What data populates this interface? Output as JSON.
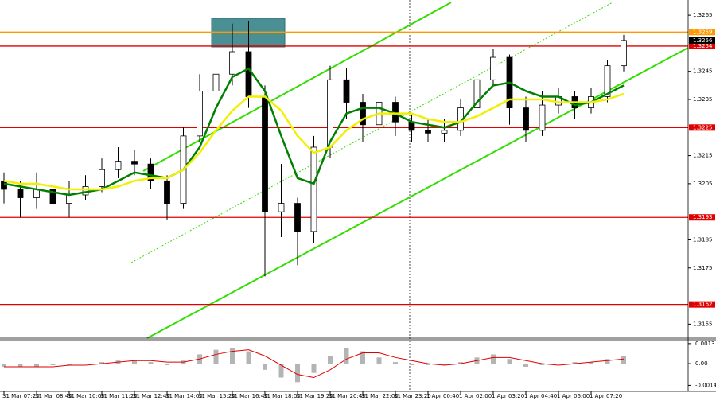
{
  "chart_data": [
    {
      "type": "candlestick",
      "categories": [
        "31 Mar 07:20",
        null,
        "31 Mar 08:40",
        null,
        "31 Mar 10:00",
        null,
        "31 Mar 11:20",
        null,
        "31 Mar 12:40",
        null,
        "31 Mar 14:00",
        null,
        "31 Mar 15:20",
        null,
        "31 Mar 16:40",
        null,
        "31 Mar 18:00",
        null,
        "31 Mar 19:20",
        null,
        "31 Mar 20:40",
        null,
        "31 Mar 22:00",
        null,
        "31 Mar 23:20",
        null,
        "1 Apr 00:40",
        null,
        "1 Apr 02:00",
        null,
        "1 Apr 03:20",
        null,
        "1 Apr 04:40",
        null,
        "1 Apr 06:00",
        null,
        "1 Apr 07:20",
        null,
        null
      ],
      "open": [
        1.3206,
        1.3203,
        1.32,
        1.3203,
        1.3198,
        1.3201,
        1.3204,
        1.321,
        1.3213,
        1.3212,
        1.3206,
        1.3198,
        1.3222,
        1.3238,
        1.3244,
        1.3252,
        1.3236,
        1.3195,
        1.3198,
        1.3188,
        1.3218,
        1.3242,
        1.3234,
        1.3226,
        1.3234,
        1.3227,
        1.3224,
        1.3223,
        1.3224,
        1.3232,
        1.3242,
        1.325,
        1.3232,
        1.3224,
        1.3233,
        1.3236,
        1.3232,
        1.3236,
        1.3247
      ],
      "high": [
        1.3209,
        1.3206,
        1.3209,
        1.3207,
        1.3206,
        1.3208,
        1.3214,
        1.3218,
        1.3217,
        1.3214,
        1.3208,
        1.3225,
        1.3244,
        1.325,
        1.3262,
        1.3263,
        1.324,
        1.3212,
        1.32,
        1.3222,
        1.3247,
        1.3246,
        1.3237,
        1.3239,
        1.3236,
        1.323,
        1.3228,
        1.3228,
        1.3235,
        1.3245,
        1.3253,
        1.3251,
        1.3236,
        1.3238,
        1.3239,
        1.3238,
        1.3239,
        1.3249,
        1.3258
      ],
      "low": [
        1.3198,
        1.3193,
        1.3196,
        1.3192,
        1.3193,
        1.3199,
        1.3202,
        1.3207,
        1.3208,
        1.3203,
        1.3192,
        1.3196,
        1.322,
        1.3234,
        1.324,
        1.3232,
        1.3172,
        1.3186,
        1.3176,
        1.3184,
        1.3214,
        1.3228,
        1.322,
        1.3224,
        1.3222,
        1.322,
        1.322,
        1.322,
        1.3222,
        1.323,
        1.324,
        1.3226,
        1.322,
        1.3222,
        1.323,
        1.3228,
        1.323,
        1.3234,
        1.3245
      ],
      "close": [
        1.3203,
        1.32,
        1.3203,
        1.3198,
        1.3201,
        1.3204,
        1.321,
        1.3213,
        1.3212,
        1.3206,
        1.3198,
        1.3222,
        1.3238,
        1.3244,
        1.3252,
        1.3236,
        1.3195,
        1.3198,
        1.3188,
        1.3218,
        1.3242,
        1.3234,
        1.3226,
        1.3234,
        1.3227,
        1.3224,
        1.3223,
        1.3224,
        1.3232,
        1.3242,
        1.325,
        1.3232,
        1.3224,
        1.3233,
        1.3236,
        1.3232,
        1.3236,
        1.3247,
        1.3256
      ],
      "series": [
        {
          "color": "#008000",
          "values": [
            1.3205,
            1.3204,
            1.3203,
            1.3202,
            1.3201,
            1.3202,
            1.3203,
            1.3206,
            1.3209,
            1.3208,
            1.3207,
            1.321,
            1.3218,
            1.3232,
            1.3243,
            1.3246,
            1.3238,
            1.3222,
            1.3207,
            1.3205,
            1.322,
            1.323,
            1.3232,
            1.3232,
            1.323,
            1.3227,
            1.3226,
            1.3225,
            1.3227,
            1.3234,
            1.324,
            1.3241,
            1.3238,
            1.3236,
            1.3236,
            1.3233,
            1.3234,
            1.3237,
            1.324
          ]
        },
        {
          "color": "#f0f000",
          "values": [
            1.3206,
            1.3205,
            1.3205,
            1.3204,
            1.3203,
            1.3203,
            1.3203,
            1.3204,
            1.3206,
            1.3207,
            1.3207,
            1.321,
            1.3216,
            1.3224,
            1.3231,
            1.3236,
            1.3236,
            1.3231,
            1.3222,
            1.3216,
            1.3218,
            1.3224,
            1.3228,
            1.323,
            1.323,
            1.323,
            1.3228,
            1.3227,
            1.3227,
            1.3229,
            1.3232,
            1.3235,
            1.3235,
            1.3235,
            1.3234,
            1.3234,
            1.3234,
            1.3235,
            1.3237
          ]
        }
      ],
      "levels": [
        {
          "value": 1.3259,
          "color": "#ff9900"
        },
        {
          "value": 1.3254,
          "color": "#e00000"
        },
        {
          "value": 1.3225,
          "color": "#e00000"
        },
        {
          "value": 1.3193,
          "color": "#e00000"
        },
        {
          "value": 1.3162,
          "color": "#e00000"
        }
      ],
      "last_price": 1.3256,
      "ylim": [
        1.315,
        1.3269
      ],
      "yticks": [
        1.3155,
        1.3175,
        1.3185,
        1.3205,
        1.3215,
        1.3235,
        1.3245,
        1.3265
      ]
    },
    {
      "type": "macd",
      "histogram": {
        "color": "#b4b4b4",
        "values": [
          -0.0002,
          -0.0002,
          -0.0002,
          -0.0001,
          -0.0001,
          0,
          0.0001,
          0.0002,
          0.0002,
          0.0001,
          -0.0001,
          0.0002,
          0.0006,
          0.0009,
          0.001,
          0.0008,
          -0.0004,
          -0.0009,
          -0.0012,
          -0.0006,
          0.0005,
          0.001,
          0.0008,
          0.0004,
          0.0001,
          -0.0001,
          -0.0001,
          -0.0001,
          0.0001,
          0.0004,
          0.0006,
          0.0003,
          -0.0002,
          -0.0001,
          0,
          0.0001,
          0.0001,
          0.0003,
          0.0005
        ]
      },
      "signal": {
        "color": "#e00000",
        "values": [
          -0.0002,
          -0.0002,
          -0.0002,
          -0.0002,
          -0.0001,
          -0.0001,
          0,
          0.0001,
          0.0002,
          0.0002,
          0.0001,
          0.0001,
          0.0003,
          0.0006,
          0.0008,
          0.0009,
          0.0005,
          -0.0001,
          -0.0007,
          -0.0009,
          -0.0004,
          0.0003,
          0.0007,
          0.0007,
          0.0004,
          0.0002,
          0,
          -0.0001,
          0,
          0.0002,
          0.0004,
          0.0004,
          0.0002,
          0,
          -0.0001,
          0,
          0.0001,
          0.0002,
          0.0003
        ]
      },
      "ylim": [
        -0.00175,
        0.0015
      ],
      "yticks": [
        -0.00141,
        {
          "value": 0,
          "label": "0.00"
        },
        0.0013
      ]
    }
  ]
}
